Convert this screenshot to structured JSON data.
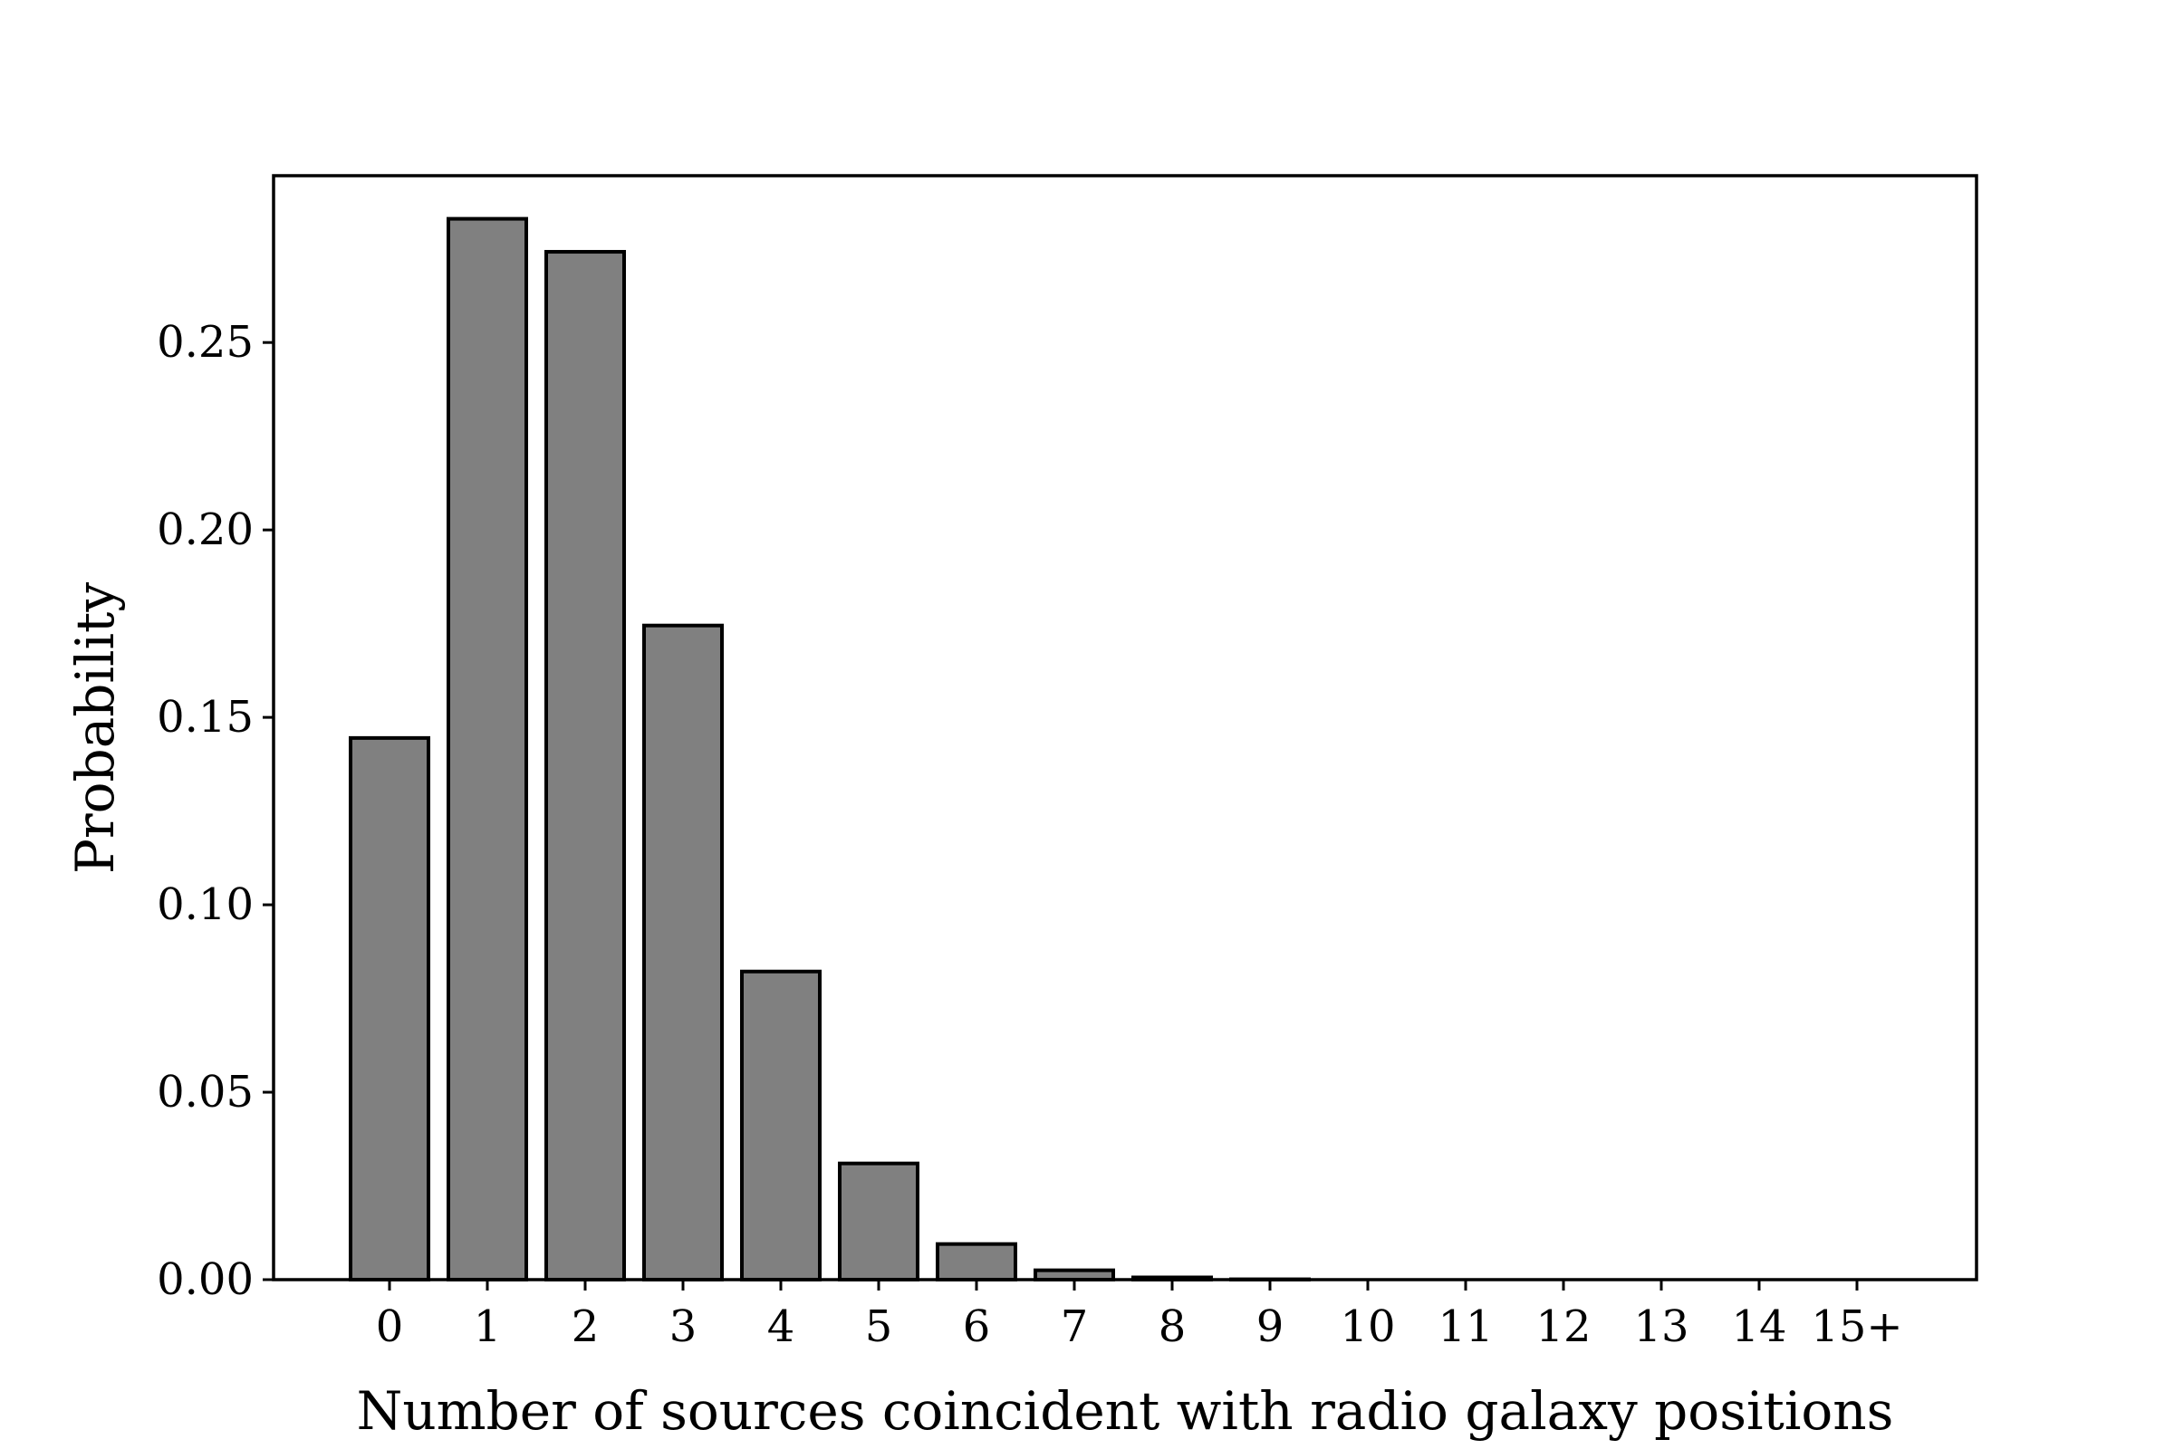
{
  "chart_data": {
    "type": "bar",
    "title": "",
    "xlabel": "Number of sources coincident with radio galaxy positions",
    "ylabel": "Probability",
    "categories": [
      "0",
      "1",
      "2",
      "3",
      "4",
      "5",
      "6",
      "7",
      "8",
      "9",
      "10",
      "11",
      "12",
      "13",
      "14",
      "15+"
    ],
    "values": [
      0.1445,
      0.283,
      0.2742,
      0.1745,
      0.0822,
      0.031,
      0.0095,
      0.0025,
      0.0006,
      0.0001,
      0.0,
      0.0,
      0.0,
      0.0,
      0.0,
      0.0
    ],
    "ylim": [
      0,
      0.2945
    ],
    "yticks": [
      0.0,
      0.05,
      0.1,
      0.15,
      0.2,
      0.25
    ],
    "ytick_labels": [
      "0.00",
      "0.05",
      "0.10",
      "0.15",
      "0.20",
      "0.25"
    ],
    "grid": false,
    "colors": {
      "bar_fill": "#808080",
      "bar_edge": "#000000"
    }
  }
}
